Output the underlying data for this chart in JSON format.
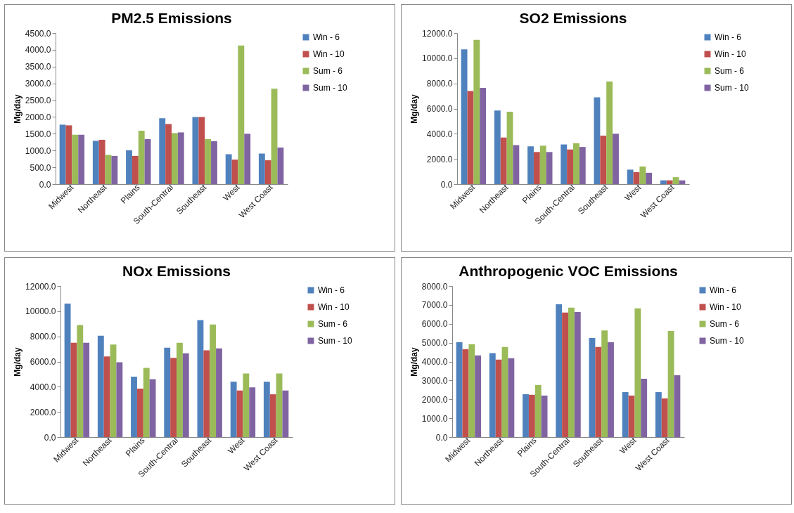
{
  "chart_data": [
    {
      "type": "bar",
      "title": "PM2.5 Emissions",
      "ylabel": "Mg/day",
      "categories": [
        "Midwest",
        "Northeast",
        "Plains",
        "South-Central",
        "Southeast",
        "West",
        "West Coast"
      ],
      "ylim": [
        0,
        4500
      ],
      "yticks": [
        {
          "value": 0,
          "label": "0.0"
        },
        {
          "value": 500,
          "label": "500.0"
        },
        {
          "value": 1000,
          "label": "1000.0"
        },
        {
          "value": 1500,
          "label": "1500.0"
        },
        {
          "value": 2000,
          "label": "2000.0"
        },
        {
          "value": 2500,
          "label": "2500.0"
        },
        {
          "value": 3000,
          "label": "3000.0"
        },
        {
          "value": 3500,
          "label": "3500.0"
        },
        {
          "value": 4000,
          "label": "4000.0"
        },
        {
          "value": 4500,
          "label": "4500.0"
        }
      ],
      "grid": false,
      "legend": "right",
      "series": [
        {
          "name": "Win - 6",
          "color": "#4f81bd",
          "values": [
            1770,
            1290,
            1010,
            1960,
            2000,
            890,
            910
          ]
        },
        {
          "name": "Win - 10",
          "color": "#c0504d",
          "values": [
            1750,
            1320,
            840,
            1790,
            2000,
            730,
            710
          ]
        },
        {
          "name": "Sum - 6",
          "color": "#9bbb59",
          "values": [
            1470,
            870,
            1590,
            1520,
            1340,
            4130,
            2840
          ]
        },
        {
          "name": "Sum - 10",
          "color": "#8064a2",
          "values": [
            1470,
            840,
            1340,
            1540,
            1280,
            1500,
            1090
          ]
        }
      ]
    },
    {
      "type": "bar",
      "title": "SO2 Emissions",
      "ylabel": "Mg/day",
      "categories": [
        "Midwest",
        "Northeast",
        "Plains",
        "South-Central",
        "Southeast",
        "West",
        "West Coast"
      ],
      "ylim": [
        0,
        12000
      ],
      "yticks": [
        {
          "value": 0,
          "label": "0.0"
        },
        {
          "value": 2000,
          "label": "2000.0"
        },
        {
          "value": 4000,
          "label": "4000.0"
        },
        {
          "value": 6000,
          "label": "6000.0"
        },
        {
          "value": 8000,
          "label": "8000.0"
        },
        {
          "value": 10000,
          "label": "10000.0"
        },
        {
          "value": 12000,
          "label": "12000.0"
        }
      ],
      "grid": false,
      "legend": "right",
      "series": [
        {
          "name": "Win - 6",
          "color": "#4f81bd",
          "values": [
            10700,
            5850,
            3000,
            3150,
            6900,
            1150,
            300
          ]
        },
        {
          "name": "Win - 10",
          "color": "#c0504d",
          "values": [
            7400,
            3700,
            2550,
            2750,
            3850,
            950,
            300
          ]
        },
        {
          "name": "Sum - 6",
          "color": "#9bbb59",
          "values": [
            11450,
            5750,
            3050,
            3250,
            8150,
            1400,
            550
          ]
        },
        {
          "name": "Sum - 10",
          "color": "#8064a2",
          "values": [
            7650,
            3100,
            2550,
            2950,
            4000,
            900,
            300
          ]
        }
      ]
    },
    {
      "type": "bar",
      "title": "NOx Emissions",
      "ylabel": "Mg/day",
      "categories": [
        "Midwest",
        "Northeast",
        "Plains",
        "South-Central",
        "Southeast",
        "West",
        "West Coast"
      ],
      "ylim": [
        0,
        12000
      ],
      "yticks": [
        {
          "value": 0,
          "label": "0.0"
        },
        {
          "value": 2000,
          "label": "2000.0"
        },
        {
          "value": 4000,
          "label": "4000.0"
        },
        {
          "value": 6000,
          "label": "6000.0"
        },
        {
          "value": 8000,
          "label": "8000.0"
        },
        {
          "value": 10000,
          "label": "10000.0"
        },
        {
          "value": 12000,
          "label": "12000.0"
        }
      ],
      "grid": false,
      "legend": "right",
      "series": [
        {
          "name": "Win - 6",
          "color": "#4f81bd",
          "values": [
            10600,
            8050,
            4800,
            7100,
            9300,
            4400,
            4400
          ]
        },
        {
          "name": "Win - 10",
          "color": "#c0504d",
          "values": [
            7500,
            6400,
            3850,
            6300,
            6900,
            3700,
            3400
          ]
        },
        {
          "name": "Sum - 6",
          "color": "#9bbb59",
          "values": [
            8900,
            7350,
            5500,
            7500,
            8950,
            5050,
            5050
          ]
        },
        {
          "name": "Sum - 10",
          "color": "#8064a2",
          "values": [
            7500,
            5950,
            4600,
            6650,
            7050,
            3950,
            3700
          ]
        }
      ]
    },
    {
      "type": "bar",
      "title": "Anthropogenic VOC Emissions",
      "ylabel": "Mg/day",
      "categories": [
        "Midwest",
        "Northeast",
        "Plains",
        "South-Central",
        "Southeast",
        "West",
        "West Coast"
      ],
      "ylim": [
        0,
        8000
      ],
      "yticks": [
        {
          "value": 0,
          "label": "0.0"
        },
        {
          "value": 1000,
          "label": "1000.0"
        },
        {
          "value": 2000,
          "label": "2000.0"
        },
        {
          "value": 3000,
          "label": "3000.0"
        },
        {
          "value": 4000,
          "label": "4000.0"
        },
        {
          "value": 5000,
          "label": "5000.0"
        },
        {
          "value": 6000,
          "label": "6000.0"
        },
        {
          "value": 7000,
          "label": "7000.0"
        },
        {
          "value": 8000,
          "label": "8000.0"
        }
      ],
      "grid": false,
      "legend": "right",
      "series": [
        {
          "name": "Win - 6",
          "color": "#4f81bd",
          "values": [
            5020,
            4450,
            2270,
            7030,
            5250,
            2380,
            2380
          ]
        },
        {
          "name": "Win - 10",
          "color": "#c0504d",
          "values": [
            4650,
            4100,
            2240,
            6600,
            4770,
            2200,
            2050
          ]
        },
        {
          "name": "Sum - 6",
          "color": "#9bbb59",
          "values": [
            4920,
            4770,
            2760,
            6860,
            5650,
            6820,
            5620
          ]
        },
        {
          "name": "Sum - 10",
          "color": "#8064a2",
          "values": [
            4330,
            4180,
            2200,
            6620,
            5020,
            3090,
            3270
          ]
        }
      ]
    }
  ]
}
